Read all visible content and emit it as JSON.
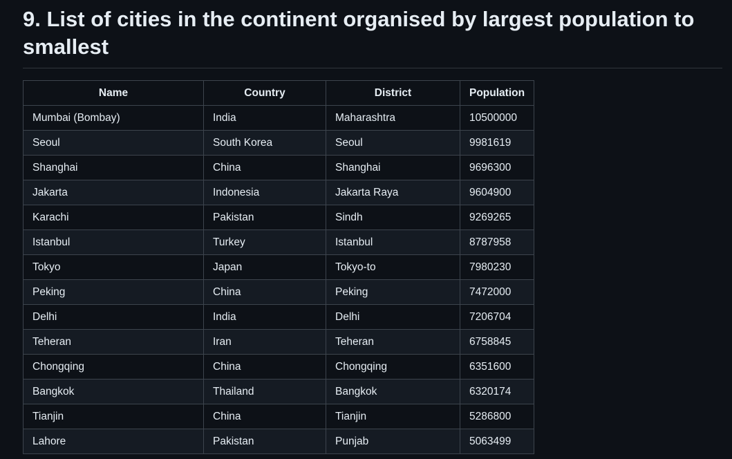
{
  "heading": "9. List of cities in the continent organised by largest population to smallest",
  "table": {
    "columns": [
      "Name",
      "Country",
      "District",
      "Population"
    ],
    "rows": [
      [
        "Mumbai (Bombay)",
        "India",
        "Maharashtra",
        "10500000"
      ],
      [
        "Seoul",
        "South Korea",
        "Seoul",
        "9981619"
      ],
      [
        "Shanghai",
        "China",
        "Shanghai",
        "9696300"
      ],
      [
        "Jakarta",
        "Indonesia",
        "Jakarta Raya",
        "9604900"
      ],
      [
        "Karachi",
        "Pakistan",
        "Sindh",
        "9269265"
      ],
      [
        "Istanbul",
        "Turkey",
        "Istanbul",
        "8787958"
      ],
      [
        "Tokyo",
        "Japan",
        "Tokyo-to",
        "7980230"
      ],
      [
        "Peking",
        "China",
        "Peking",
        "7472000"
      ],
      [
        "Delhi",
        "India",
        "Delhi",
        "7206704"
      ],
      [
        "Teheran",
        "Iran",
        "Teheran",
        "6758845"
      ],
      [
        "Chongqing",
        "China",
        "Chongqing",
        "6351600"
      ],
      [
        "Bangkok",
        "Thailand",
        "Bangkok",
        "6320174"
      ],
      [
        "Tianjin",
        "China",
        "Tianjin",
        "5286800"
      ],
      [
        "Lahore",
        "Pakistan",
        "Punjab",
        "5063499"
      ]
    ]
  },
  "colors": {
    "background": "#0d1117",
    "row_alt": "#151b23",
    "border": "#3d444d",
    "text": "#e6edf3"
  }
}
